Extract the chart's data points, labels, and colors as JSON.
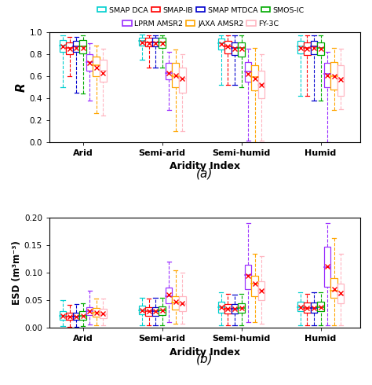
{
  "legend_labels": [
    "SMAP DCA",
    "SMAP-IB",
    "SMAP MTDCA",
    "SMOS-IC",
    "LPRM AMSR2",
    "JAXA AMSR2",
    "FY-3C"
  ],
  "legend_colors": [
    "#00CFCF",
    "#FF0000",
    "#0000CD",
    "#00AA00",
    "#9B30FF",
    "#FFA500",
    "#FFB6C1"
  ],
  "categories": [
    "Arid",
    "Semi-arid",
    "Semi-humid",
    "Humid"
  ],
  "subplot_a": {
    "ylabel": "R",
    "ylim": [
      0.0,
      1.0
    ],
    "yticks": [
      0.0,
      0.2,
      0.4,
      0.6,
      0.8,
      1.0
    ],
    "xlabel": "Aridity Index",
    "label": "(a)",
    "boxes": {
      "Arid": [
        {
          "q1": 0.82,
          "med": 0.88,
          "q3": 0.93,
          "whislo": 0.5,
          "whishi": 0.97,
          "mean": 0.87
        },
        {
          "q1": 0.8,
          "med": 0.86,
          "q3": 0.91,
          "whislo": 0.6,
          "whishi": 0.96,
          "mean": 0.85
        },
        {
          "q1": 0.82,
          "med": 0.87,
          "q3": 0.92,
          "whislo": 0.45,
          "whishi": 0.96,
          "mean": 0.86
        },
        {
          "q1": 0.81,
          "med": 0.87,
          "q3": 0.93,
          "whislo": 0.44,
          "whishi": 0.97,
          "mean": 0.86
        },
        {
          "q1": 0.65,
          "med": 0.73,
          "q3": 0.8,
          "whislo": 0.38,
          "whishi": 0.9,
          "mean": 0.72
        },
        {
          "q1": 0.6,
          "med": 0.7,
          "q3": 0.78,
          "whislo": 0.26,
          "whishi": 0.88,
          "mean": 0.68
        },
        {
          "q1": 0.55,
          "med": 0.65,
          "q3": 0.75,
          "whislo": 0.24,
          "whishi": 0.85,
          "mean": 0.63
        }
      ],
      "Semi-arid": [
        {
          "q1": 0.88,
          "med": 0.92,
          "q3": 0.95,
          "whislo": 0.75,
          "whishi": 0.98,
          "mean": 0.91
        },
        {
          "q1": 0.87,
          "med": 0.91,
          "q3": 0.95,
          "whislo": 0.68,
          "whishi": 0.97,
          "mean": 0.9
        },
        {
          "q1": 0.87,
          "med": 0.91,
          "q3": 0.95,
          "whislo": 0.68,
          "whishi": 0.97,
          "mean": 0.9
        },
        {
          "q1": 0.86,
          "med": 0.91,
          "q3": 0.95,
          "whislo": 0.68,
          "whishi": 0.97,
          "mean": 0.9
        },
        {
          "q1": 0.57,
          "med": 0.63,
          "q3": 0.72,
          "whislo": 0.29,
          "whishi": 0.82,
          "mean": 0.63
        },
        {
          "q1": 0.5,
          "med": 0.6,
          "q3": 0.72,
          "whislo": 0.1,
          "whishi": 0.84,
          "mean": 0.61
        },
        {
          "q1": 0.45,
          "med": 0.58,
          "q3": 0.68,
          "whislo": 0.1,
          "whishi": 0.8,
          "mean": 0.58
        }
      ],
      "Semi-humid": [
        {
          "q1": 0.84,
          "med": 0.9,
          "q3": 0.94,
          "whislo": 0.52,
          "whishi": 0.97,
          "mean": 0.89
        },
        {
          "q1": 0.81,
          "med": 0.87,
          "q3": 0.92,
          "whislo": 0.52,
          "whishi": 0.97,
          "mean": 0.87
        },
        {
          "q1": 0.79,
          "med": 0.86,
          "q3": 0.91,
          "whislo": 0.52,
          "whishi": 0.97,
          "mean": 0.85
        },
        {
          "q1": 0.78,
          "med": 0.86,
          "q3": 0.91,
          "whislo": 0.5,
          "whishi": 0.97,
          "mean": 0.85
        },
        {
          "q1": 0.55,
          "med": 0.64,
          "q3": 0.73,
          "whislo": 0.01,
          "whishi": 0.85,
          "mean": 0.62
        },
        {
          "q1": 0.47,
          "med": 0.59,
          "q3": 0.7,
          "whislo": 0.0,
          "whishi": 0.86,
          "mean": 0.58
        },
        {
          "q1": 0.4,
          "med": 0.52,
          "q3": 0.65,
          "whislo": 0.01,
          "whishi": 0.8,
          "mean": 0.52
        }
      ],
      "Humid": [
        {
          "q1": 0.81,
          "med": 0.87,
          "q3": 0.92,
          "whislo": 0.42,
          "whishi": 0.97,
          "mean": 0.86
        },
        {
          "q1": 0.79,
          "med": 0.86,
          "q3": 0.91,
          "whislo": 0.42,
          "whishi": 0.97,
          "mean": 0.85
        },
        {
          "q1": 0.8,
          "med": 0.87,
          "q3": 0.92,
          "whislo": 0.38,
          "whishi": 0.97,
          "mean": 0.86
        },
        {
          "q1": 0.79,
          "med": 0.86,
          "q3": 0.91,
          "whislo": 0.38,
          "whishi": 0.97,
          "mean": 0.85
        },
        {
          "q1": 0.5,
          "med": 0.62,
          "q3": 0.72,
          "whislo": 0.0,
          "whishi": 0.82,
          "mean": 0.61
        },
        {
          "q1": 0.48,
          "med": 0.6,
          "q3": 0.73,
          "whislo": 0.29,
          "whishi": 0.86,
          "mean": 0.6
        },
        {
          "q1": 0.42,
          "med": 0.57,
          "q3": 0.7,
          "whislo": 0.3,
          "whishi": 0.85,
          "mean": 0.57
        }
      ]
    }
  },
  "subplot_b": {
    "ylabel": "ESD (m³m⁻³)",
    "ylim": [
      0.0,
      0.2
    ],
    "yticks": [
      0.0,
      0.05,
      0.1,
      0.15,
      0.2
    ],
    "xlabel": "Aridity Index",
    "label": "(b)",
    "boxes": {
      "Arid": [
        {
          "q1": 0.015,
          "med": 0.022,
          "q3": 0.03,
          "whislo": 0.003,
          "whishi": 0.05,
          "mean": 0.022
        },
        {
          "q1": 0.014,
          "med": 0.02,
          "q3": 0.028,
          "whislo": 0.002,
          "whishi": 0.042,
          "mean": 0.02
        },
        {
          "q1": 0.014,
          "med": 0.02,
          "q3": 0.028,
          "whislo": 0.002,
          "whishi": 0.043,
          "mean": 0.02
        },
        {
          "q1": 0.015,
          "med": 0.022,
          "q3": 0.03,
          "whislo": 0.003,
          "whishi": 0.044,
          "mean": 0.022
        },
        {
          "q1": 0.023,
          "med": 0.03,
          "q3": 0.038,
          "whislo": 0.006,
          "whishi": 0.068,
          "mean": 0.03
        },
        {
          "q1": 0.02,
          "med": 0.027,
          "q3": 0.036,
          "whislo": 0.005,
          "whishi": 0.053,
          "mean": 0.028
        },
        {
          "q1": 0.018,
          "med": 0.025,
          "q3": 0.034,
          "whislo": 0.004,
          "whishi": 0.053,
          "mean": 0.026
        }
      ],
      "Semi-arid": [
        {
          "q1": 0.024,
          "med": 0.032,
          "q3": 0.04,
          "whislo": 0.005,
          "whishi": 0.055,
          "mean": 0.032
        },
        {
          "q1": 0.022,
          "med": 0.03,
          "q3": 0.038,
          "whislo": 0.005,
          "whishi": 0.053,
          "mean": 0.03
        },
        {
          "q1": 0.022,
          "med": 0.03,
          "q3": 0.038,
          "whislo": 0.005,
          "whishi": 0.054,
          "mean": 0.03
        },
        {
          "q1": 0.023,
          "med": 0.031,
          "q3": 0.039,
          "whislo": 0.005,
          "whishi": 0.055,
          "mean": 0.031
        },
        {
          "q1": 0.045,
          "med": 0.058,
          "q3": 0.073,
          "whislo": 0.01,
          "whishi": 0.12,
          "mean": 0.06
        },
        {
          "q1": 0.033,
          "med": 0.046,
          "q3": 0.058,
          "whislo": 0.008,
          "whishi": 0.105,
          "mean": 0.047
        },
        {
          "q1": 0.03,
          "med": 0.043,
          "q3": 0.058,
          "whislo": 0.007,
          "whishi": 0.1,
          "mean": 0.044
        }
      ],
      "Semi-humid": [
        {
          "q1": 0.028,
          "med": 0.037,
          "q3": 0.047,
          "whislo": 0.005,
          "whishi": 0.065,
          "mean": 0.037
        },
        {
          "q1": 0.026,
          "med": 0.034,
          "q3": 0.043,
          "whislo": 0.005,
          "whishi": 0.062,
          "mean": 0.034
        },
        {
          "q1": 0.026,
          "med": 0.034,
          "q3": 0.043,
          "whislo": 0.005,
          "whishi": 0.06,
          "mean": 0.034
        },
        {
          "q1": 0.027,
          "med": 0.036,
          "q3": 0.045,
          "whislo": 0.005,
          "whishi": 0.062,
          "mean": 0.036
        },
        {
          "q1": 0.07,
          "med": 0.096,
          "q3": 0.115,
          "whislo": 0.01,
          "whishi": 0.19,
          "mean": 0.095
        },
        {
          "q1": 0.058,
          "med": 0.08,
          "q3": 0.095,
          "whislo": 0.01,
          "whishi": 0.135,
          "mean": 0.08
        },
        {
          "q1": 0.05,
          "med": 0.068,
          "q3": 0.085,
          "whislo": 0.008,
          "whishi": 0.13,
          "mean": 0.068
        }
      ],
      "Humid": [
        {
          "q1": 0.03,
          "med": 0.038,
          "q3": 0.048,
          "whislo": 0.005,
          "whishi": 0.065,
          "mean": 0.038
        },
        {
          "q1": 0.028,
          "med": 0.036,
          "q3": 0.046,
          "whislo": 0.005,
          "whishi": 0.062,
          "mean": 0.036
        },
        {
          "q1": 0.028,
          "med": 0.036,
          "q3": 0.046,
          "whislo": 0.005,
          "whishi": 0.065,
          "mean": 0.036
        },
        {
          "q1": 0.03,
          "med": 0.038,
          "q3": 0.048,
          "whislo": 0.005,
          "whishi": 0.065,
          "mean": 0.038
        },
        {
          "q1": 0.075,
          "med": 0.11,
          "q3": 0.148,
          "whislo": 0.005,
          "whishi": 0.19,
          "mean": 0.112
        },
        {
          "q1": 0.055,
          "med": 0.068,
          "q3": 0.09,
          "whislo": 0.005,
          "whishi": 0.163,
          "mean": 0.07
        },
        {
          "q1": 0.045,
          "med": 0.06,
          "q3": 0.08,
          "whislo": 0.005,
          "whishi": 0.135,
          "mean": 0.063
        }
      ]
    }
  }
}
